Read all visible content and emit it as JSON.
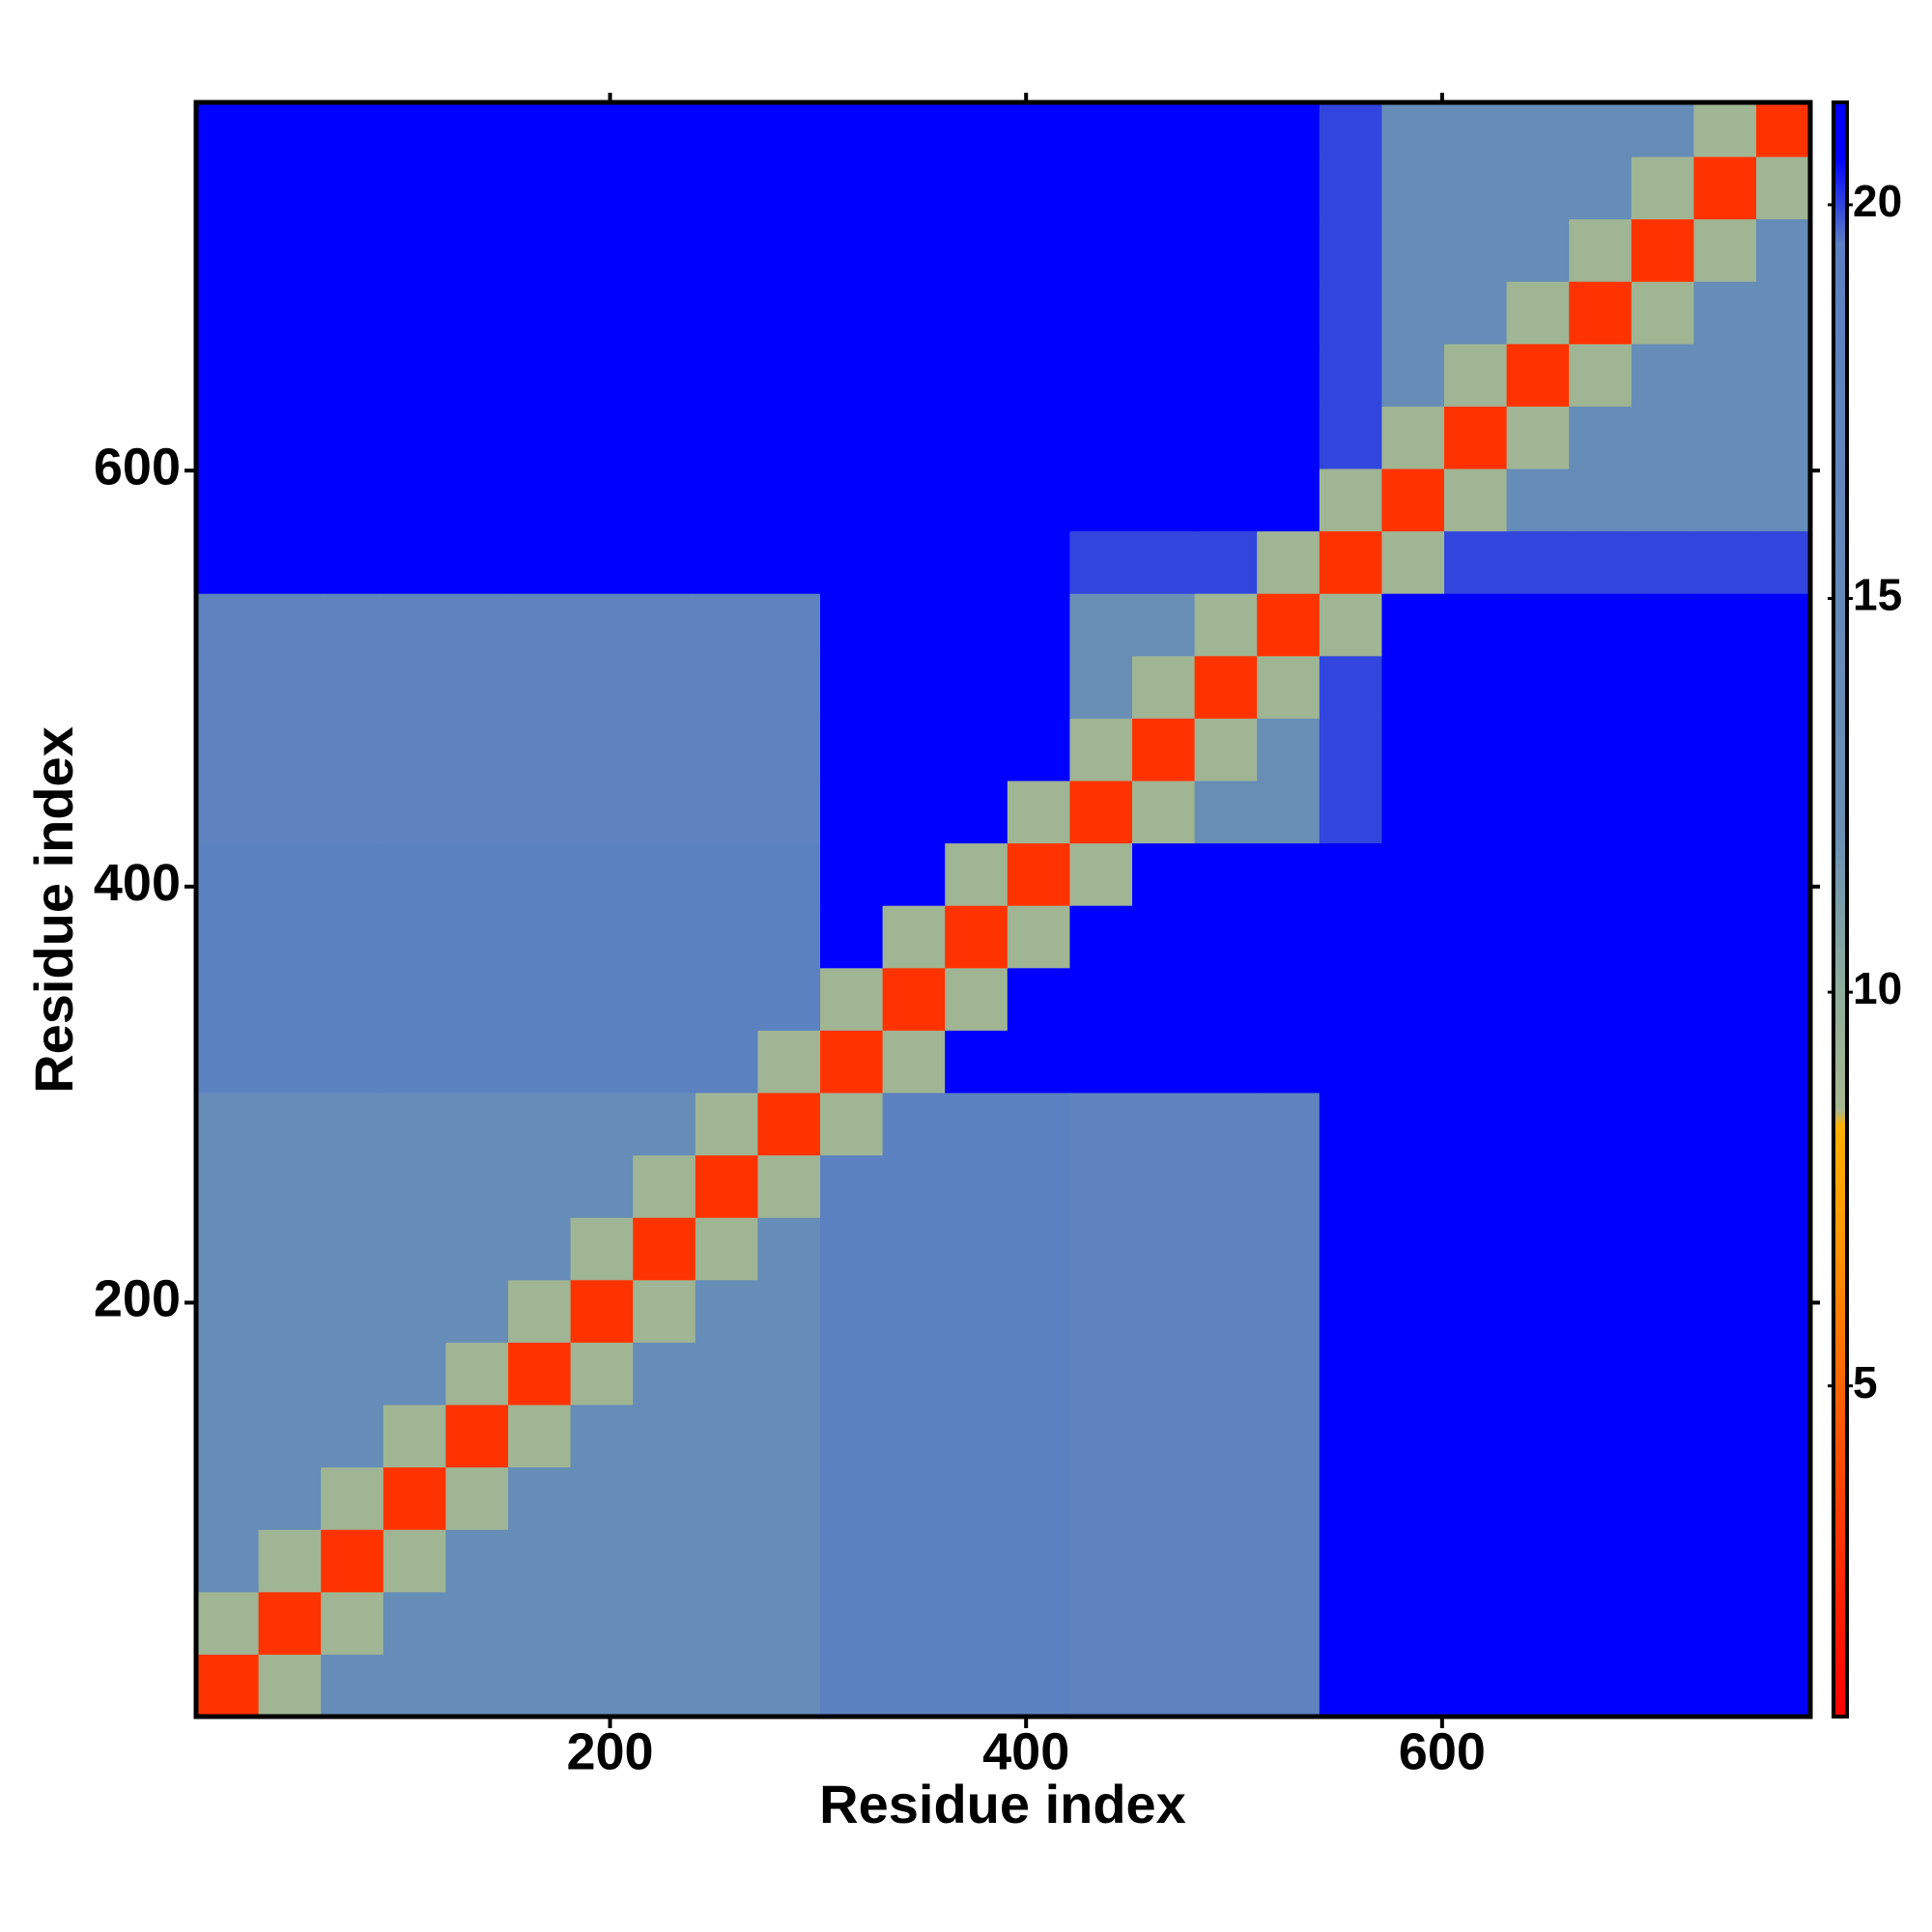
{
  "chart_data": {
    "type": "heatmap",
    "xlabel": "Residue index",
    "ylabel": "Residue index",
    "bins": [
      1,
      31,
      61,
      91,
      121,
      151,
      181,
      211,
      241,
      271,
      301,
      331,
      361,
      391,
      421,
      451,
      481,
      511,
      541,
      571,
      601,
      631,
      661,
      691,
      721,
      751,
      777
    ],
    "z": [
      [
        3,
        9,
        14,
        14,
        14,
        14,
        14,
        14,
        14,
        14,
        19,
        19,
        19,
        19,
        18,
        18,
        18,
        18,
        24,
        25,
        25,
        25,
        25,
        25,
        25,
        25
      ],
      [
        9,
        3,
        9,
        14,
        14,
        14,
        14,
        14,
        14,
        14,
        19,
        19,
        19,
        19,
        18,
        18,
        18,
        18,
        24,
        25,
        25,
        25,
        25,
        25,
        25,
        25
      ],
      [
        14,
        9,
        3,
        9,
        14,
        14,
        14,
        14,
        14,
        14,
        19,
        19,
        19,
        19,
        18,
        18,
        18,
        18,
        24,
        25,
        25,
        25,
        25,
        25,
        25,
        25
      ],
      [
        14,
        14,
        9,
        3,
        9,
        14,
        14,
        14,
        14,
        14,
        19,
        19,
        19,
        19,
        18,
        18,
        18,
        18,
        24,
        25,
        25,
        25,
        25,
        25,
        25,
        25
      ],
      [
        14,
        14,
        14,
        9,
        3,
        9,
        14,
        14,
        14,
        14,
        19,
        19,
        19,
        19,
        18,
        18,
        18,
        18,
        24,
        25,
        25,
        25,
        25,
        25,
        25,
        25
      ],
      [
        14,
        14,
        14,
        14,
        9,
        3,
        9,
        14,
        14,
        14,
        19,
        19,
        19,
        19,
        18,
        18,
        18,
        18,
        24,
        25,
        25,
        25,
        25,
        25,
        25,
        25
      ],
      [
        14,
        14,
        14,
        14,
        14,
        9,
        3,
        9,
        14,
        14,
        19,
        19,
        19,
        19,
        18,
        18,
        18,
        18,
        24,
        25,
        25,
        25,
        25,
        25,
        25,
        25
      ],
      [
        14,
        14,
        14,
        14,
        14,
        14,
        9,
        3,
        9,
        14,
        19,
        19,
        19,
        19,
        18,
        18,
        18,
        18,
        24,
        25,
        25,
        25,
        25,
        25,
        25,
        25
      ],
      [
        14,
        14,
        14,
        14,
        14,
        14,
        14,
        9,
        3,
        9,
        19,
        19,
        19,
        19,
        18,
        18,
        18,
        18,
        24,
        25,
        25,
        25,
        25,
        25,
        25,
        25
      ],
      [
        14,
        14,
        14,
        14,
        14,
        14,
        14,
        14,
        9,
        3,
        9,
        19,
        19,
        19,
        18,
        18,
        18,
        18,
        24,
        25,
        25,
        25,
        25,
        25,
        25,
        25
      ],
      [
        19,
        19,
        19,
        19,
        19,
        19,
        19,
        19,
        19,
        9,
        3,
        9,
        22,
        22,
        21,
        21,
        21,
        21,
        24,
        25,
        25,
        25,
        25,
        25,
        25,
        25
      ],
      [
        19,
        19,
        19,
        19,
        19,
        19,
        19,
        19,
        19,
        19,
        9,
        3,
        9,
        22,
        21,
        21,
        21,
        21,
        24,
        25,
        25,
        25,
        25,
        25,
        25,
        25
      ],
      [
        19,
        19,
        19,
        19,
        19,
        19,
        19,
        19,
        19,
        19,
        22,
        9,
        3,
        9,
        21,
        21,
        21,
        21,
        24,
        25,
        25,
        25,
        25,
        25,
        25,
        25
      ],
      [
        19,
        19,
        19,
        19,
        19,
        19,
        19,
        19,
        19,
        19,
        22,
        22,
        9,
        3,
        9,
        21,
        21,
        21,
        24,
        25,
        25,
        25,
        25,
        25,
        25,
        25
      ],
      [
        18,
        18,
        18,
        18,
        18,
        18,
        18,
        18,
        18,
        18,
        21,
        21,
        21,
        9,
        3,
        9,
        13,
        13,
        20,
        21,
        21,
        21,
        21,
        21,
        21,
        21
      ],
      [
        18,
        18,
        18,
        18,
        18,
        18,
        18,
        18,
        18,
        18,
        21,
        21,
        21,
        21,
        9,
        3,
        9,
        13,
        20,
        21,
        21,
        21,
        21,
        21,
        21,
        21
      ],
      [
        18,
        18,
        18,
        18,
        18,
        18,
        18,
        18,
        18,
        18,
        21,
        21,
        21,
        21,
        13,
        9,
        3,
        9,
        20,
        21,
        21,
        21,
        21,
        21,
        21,
        21
      ],
      [
        18,
        18,
        18,
        18,
        18,
        18,
        18,
        18,
        18,
        18,
        21,
        21,
        21,
        21,
        13,
        13,
        9,
        3,
        9,
        21,
        21,
        21,
        21,
        21,
        21,
        21
      ],
      [
        24,
        24,
        24,
        24,
        24,
        24,
        24,
        24,
        24,
        24,
        24,
        24,
        24,
        24,
        20,
        20,
        20,
        9,
        3,
        9,
        20,
        20,
        20,
        20,
        20,
        20
      ],
      [
        25,
        25,
        25,
        25,
        25,
        25,
        25,
        25,
        25,
        25,
        25,
        25,
        25,
        25,
        21,
        21,
        21,
        21,
        9,
        3,
        9,
        14,
        14,
        14,
        14,
        14
      ],
      [
        25,
        25,
        25,
        25,
        25,
        25,
        25,
        25,
        25,
        25,
        25,
        25,
        25,
        25,
        21,
        21,
        21,
        21,
        20,
        9,
        3,
        9,
        14,
        14,
        14,
        14
      ],
      [
        25,
        25,
        25,
        25,
        25,
        25,
        25,
        25,
        25,
        25,
        25,
        25,
        25,
        25,
        21,
        21,
        21,
        21,
        20,
        14,
        9,
        3,
        9,
        14,
        14,
        14
      ],
      [
        25,
        25,
        25,
        25,
        25,
        25,
        25,
        25,
        25,
        25,
        25,
        25,
        25,
        25,
        21,
        21,
        21,
        21,
        20,
        14,
        14,
        9,
        3,
        9,
        14,
        14
      ],
      [
        25,
        25,
        25,
        25,
        25,
        25,
        25,
        25,
        25,
        25,
        25,
        25,
        25,
        25,
        21,
        21,
        21,
        21,
        20,
        14,
        14,
        14,
        9,
        3,
        9,
        14
      ],
      [
        25,
        25,
        25,
        25,
        25,
        25,
        25,
        25,
        25,
        25,
        25,
        25,
        25,
        25,
        21,
        21,
        21,
        21,
        20,
        14,
        14,
        14,
        14,
        9,
        3,
        9
      ],
      [
        25,
        25,
        25,
        25,
        25,
        25,
        25,
        25,
        25,
        25,
        25,
        25,
        25,
        25,
        21,
        21,
        21,
        21,
        20,
        14,
        14,
        14,
        14,
        14,
        9,
        3
      ]
    ],
    "xlim": [
      1,
      777
    ],
    "ylim": [
      1,
      777
    ],
    "xticks": [
      200,
      400,
      600
    ],
    "yticks": [
      200,
      400,
      600
    ],
    "zlim": [
      0.8,
      21.3
    ],
    "zticks": [
      5,
      10,
      15,
      20
    ],
    "colorscale": [
      [
        0.8,
        "#ff0000"
      ],
      [
        4,
        "#ff4a00"
      ],
      [
        7,
        "#ff9a00"
      ],
      [
        8.3,
        "#ffb000"
      ],
      [
        8.5,
        "#a8b890"
      ],
      [
        10,
        "#8fae9c"
      ],
      [
        12,
        "#6a90b4"
      ],
      [
        19.5,
        "#5b80c2"
      ],
      [
        20.6,
        "#0000ff"
      ],
      [
        21.3,
        "#0000ff"
      ]
    ]
  }
}
